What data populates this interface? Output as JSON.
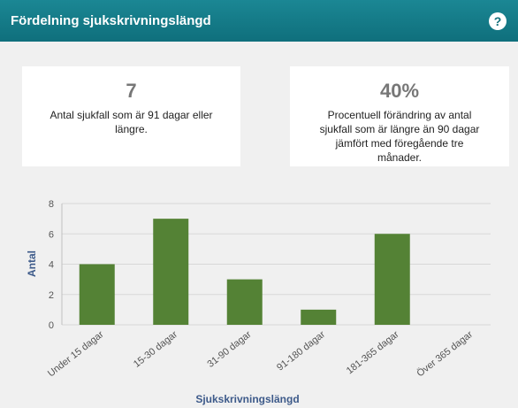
{
  "header": {
    "title": "Fördelning sjukskrivningslängd",
    "help": "?"
  },
  "cards": [
    {
      "value": "7",
      "text": "Antal sjukfall som är 91 dagar eller längre."
    },
    {
      "value": "40%",
      "text": "Procentuell förändring av antal sjukfall som är längre än 90 dagar jämfört med föregående tre månader."
    }
  ],
  "chart_data": {
    "type": "bar",
    "categories": [
      "Under 15 dagar",
      "15-30 dagar",
      "31-90 dagar",
      "91-180 dagar",
      "181-365 dagar",
      "Över 365 dagar"
    ],
    "values": [
      4,
      7,
      3,
      1,
      6,
      0
    ],
    "color": "#548235",
    "ylim": [
      0,
      8
    ],
    "yticks": [
      0,
      2,
      4,
      6,
      8
    ],
    "grid": true,
    "x_label": "Sjukskrivningslängd",
    "y_label": "Antal"
  }
}
